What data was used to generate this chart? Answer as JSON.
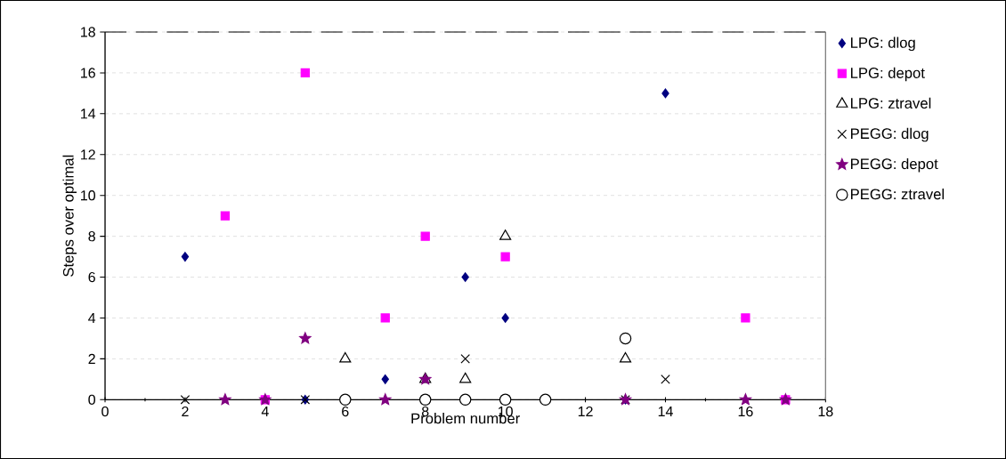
{
  "chart_data": {
    "type": "scatter",
    "xlabel": "Problem number",
    "ylabel": "Steps over optimal",
    "xlim": [
      0,
      18
    ],
    "ylim": [
      0,
      18
    ],
    "xticks": [
      0,
      2,
      4,
      6,
      8,
      10,
      12,
      14,
      16,
      18
    ],
    "yticks": [
      0,
      2,
      4,
      6,
      8,
      10,
      12,
      14,
      16,
      18
    ],
    "grid": "y",
    "legend": "right",
    "series": [
      {
        "name": "LPG: dlog",
        "color": "#000080",
        "marker": "diamond",
        "x": [
          2,
          5,
          7,
          9,
          10,
          13,
          14
        ],
        "values": [
          7,
          0,
          1,
          6,
          4,
          0,
          15
        ]
      },
      {
        "name": "LPG: depot",
        "color": "#ff00ff",
        "marker": "square",
        "x": [
          3,
          4,
          5,
          7,
          8,
          10,
          16,
          17
        ],
        "values": [
          9,
          0,
          16,
          4,
          8,
          7,
          4,
          0
        ]
      },
      {
        "name": "LPG: ztravel",
        "color": "#000000",
        "marker": "triangle",
        "x": [
          6,
          8,
          9,
          10,
          13
        ],
        "values": [
          2,
          1,
          1,
          8,
          2
        ]
      },
      {
        "name": "PEGG: dlog",
        "color": "#000000",
        "marker": "cross",
        "x": [
          2,
          5,
          8,
          9,
          10,
          13,
          14
        ],
        "values": [
          0,
          0,
          0,
          2,
          0,
          0,
          1
        ]
      },
      {
        "name": "PEGG: depot",
        "color": "#800080",
        "marker": "star",
        "x": [
          3,
          4,
          5,
          7,
          8,
          13,
          16,
          17
        ],
        "values": [
          0,
          0,
          3,
          0,
          1,
          0,
          0,
          0
        ]
      },
      {
        "name": "PEGG: ztravel",
        "color": "#000000",
        "marker": "circle",
        "x": [
          6,
          8,
          9,
          10,
          11,
          13
        ],
        "values": [
          0,
          0,
          0,
          0,
          0,
          3
        ]
      }
    ]
  }
}
